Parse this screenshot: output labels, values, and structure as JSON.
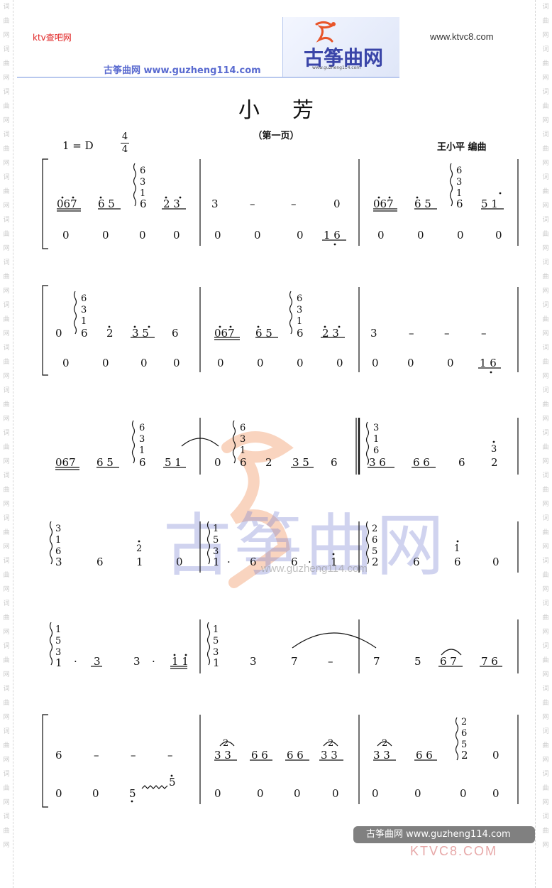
{
  "header": {
    "ktv_label": "ktv查吧网",
    "ktv_url": "www.ktvc8.com",
    "guzheng_line": "古筝曲网 www.guzheng114.com",
    "logo_title": "古筝曲网",
    "logo_sub": "www.guzheng114.com"
  },
  "sheet": {
    "title": "小芳",
    "page_label": "（第一页）",
    "key": "1 = D",
    "time_sig_top": "4",
    "time_sig_bottom": "4",
    "arranger": "王小平  编曲"
  },
  "side_watermark": [
    "词",
    "曲",
    "网"
  ],
  "watermark": {
    "text": "古筝曲网",
    "url": "www.guzheng114.com"
  },
  "footer": {
    "bar_text": "古筝曲网 www.guzheng114.com",
    "ktv_mark": "KTVC8.COM"
  },
  "colors": {
    "header_rule": "#b8c8ee",
    "logo_blue": "#3a45a8",
    "ktv_red": "#e02020",
    "watermark_blue": "#7882d2",
    "watermark_orange": "#f2a070"
  }
}
